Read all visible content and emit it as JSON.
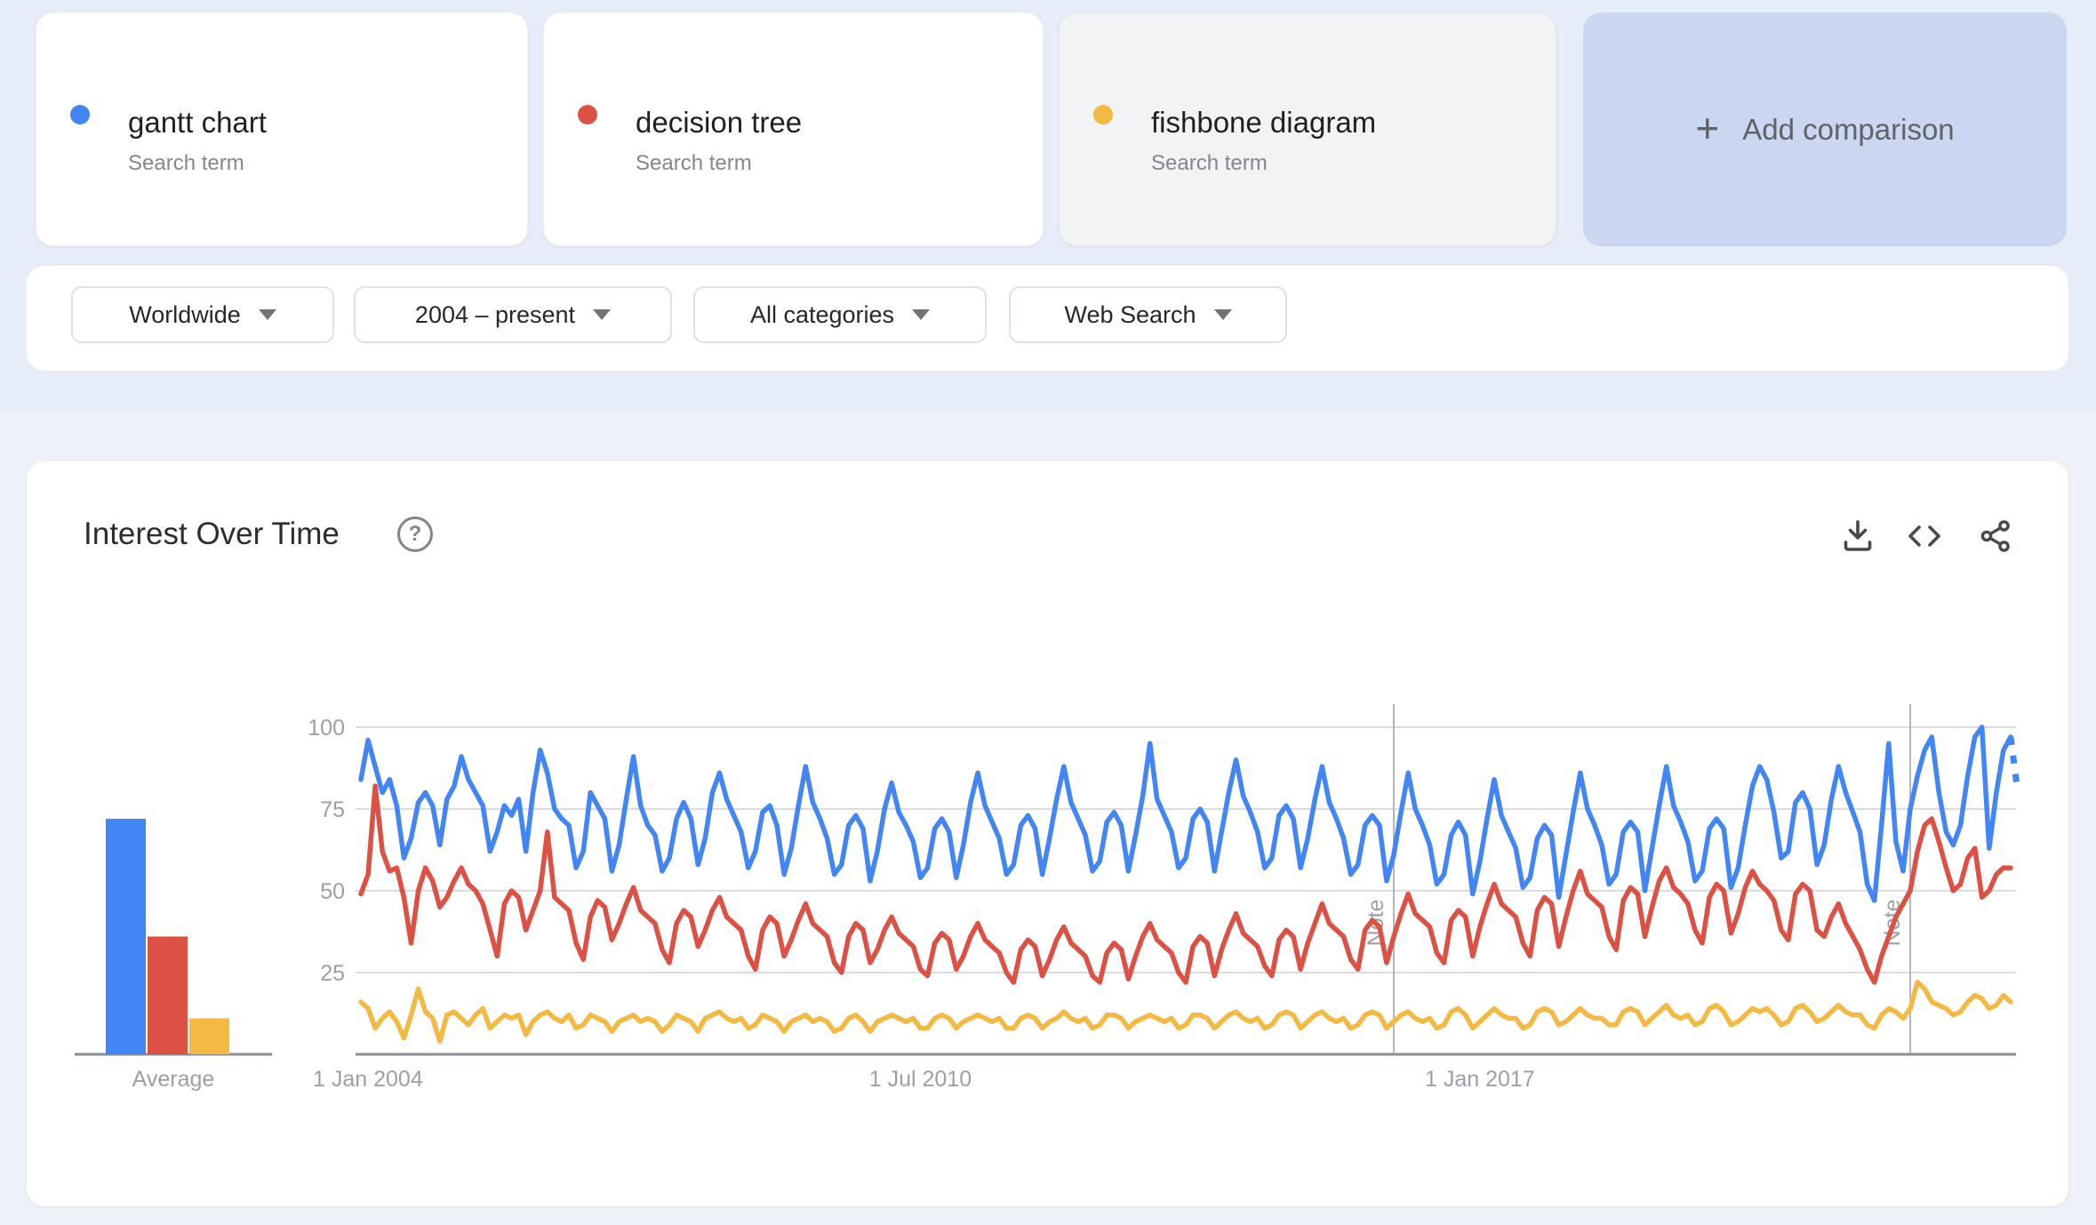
{
  "terms": [
    {
      "label": "gantt chart",
      "sublabel": "Search term",
      "color": "#4285f4"
    },
    {
      "label": "decision tree",
      "sublabel": "Search term",
      "color": "#dd5145"
    },
    {
      "label": "fishbone diagram",
      "sublabel": "Search term",
      "color": "#f4b942"
    }
  ],
  "add_comparison": {
    "plus": "+",
    "label": "Add comparison"
  },
  "filters": {
    "region": "Worldwide",
    "time": "2004 – present",
    "category": "All categories",
    "search_type": "Web Search"
  },
  "section": {
    "title": "Interest Over Time",
    "help_icon": "?"
  },
  "chart_data": {
    "type": "line",
    "title": "Interest Over Time",
    "x_unit": "month",
    "x_range": [
      "Jan 2004",
      "Mar 2023"
    ],
    "ylim": [
      0,
      100
    ],
    "grid": "horizontal",
    "legend_position": "none",
    "y_ticks": [
      100,
      75,
      50,
      25
    ],
    "x_ticks": [
      {
        "label": "1 Jan 2004",
        "index": 0
      },
      {
        "label": "1 Jul 2010",
        "index": 78
      },
      {
        "label": "1 Jan 2017",
        "index": 156
      }
    ],
    "notes": [
      {
        "label": "Note",
        "index": 144
      },
      {
        "label": "Note",
        "index": 216
      }
    ],
    "average": {
      "label": "Average",
      "values": [
        {
          "name": "gantt chart",
          "value": 72
        },
        {
          "name": "decision tree",
          "value": 36
        },
        {
          "name": "fishbone diagram",
          "value": 11
        }
      ]
    },
    "incomplete_tail": {
      "series": "gantt chart",
      "approx_value": 80,
      "style": "dotted"
    },
    "series": [
      {
        "name": "gantt chart",
        "color": "#4285f4",
        "values": [
          84,
          96,
          88,
          80,
          84,
          76,
          60,
          66,
          77,
          80,
          76,
          64,
          78,
          82,
          91,
          84,
          80,
          76,
          62,
          68,
          76,
          73,
          78,
          62,
          80,
          93,
          86,
          75,
          72,
          70,
          57,
          62,
          80,
          76,
          72,
          56,
          64,
          78,
          91,
          76,
          70,
          67,
          56,
          60,
          72,
          77,
          72,
          58,
          66,
          80,
          86,
          78,
          73,
          68,
          57,
          62,
          74,
          76,
          70,
          55,
          63,
          76,
          88,
          77,
          72,
          66,
          55,
          58,
          70,
          73,
          69,
          53,
          62,
          75,
          83,
          74,
          70,
          65,
          54,
          57,
          69,
          72,
          68,
          54,
          64,
          77,
          86,
          76,
          71,
          66,
          55,
          58,
          70,
          73,
          69,
          55,
          66,
          78,
          88,
          77,
          72,
          67,
          56,
          59,
          71,
          74,
          70,
          56,
          67,
          79,
          95,
          78,
          73,
          68,
          57,
          60,
          72,
          75,
          71,
          56,
          68,
          80,
          90,
          79,
          74,
          68,
          57,
          60,
          73,
          76,
          72,
          57,
          66,
          78,
          88,
          77,
          72,
          66,
          55,
          58,
          70,
          73,
          70,
          53,
          61,
          74,
          86,
          75,
          70,
          64,
          52,
          55,
          67,
          71,
          67,
          49,
          59,
          72,
          84,
          73,
          68,
          63,
          51,
          54,
          66,
          70,
          67,
          48,
          61,
          74,
          86,
          75,
          70,
          64,
          52,
          55,
          68,
          71,
          68,
          50,
          63,
          76,
          88,
          76,
          71,
          65,
          53,
          56,
          69,
          72,
          69,
          51,
          57,
          70,
          82,
          88,
          84,
          74,
          60,
          62,
          77,
          80,
          75,
          58,
          64,
          78,
          88,
          80,
          74,
          68,
          52,
          47,
          70,
          95,
          65,
          56,
          75,
          85,
          93,
          97,
          80,
          68,
          64,
          70,
          85,
          97,
          100,
          63,
          80,
          93,
          97
        ]
      },
      {
        "name": "decision tree",
        "color": "#dd5145",
        "values": [
          49,
          55,
          82,
          62,
          56,
          57,
          48,
          34,
          50,
          57,
          53,
          45,
          48,
          53,
          57,
          52,
          50,
          46,
          38,
          30,
          46,
          50,
          48,
          38,
          44,
          50,
          68,
          48,
          46,
          44,
          34,
          29,
          42,
          47,
          45,
          35,
          40,
          46,
          51,
          44,
          42,
          40,
          32,
          28,
          40,
          44,
          42,
          33,
          38,
          44,
          48,
          42,
          40,
          38,
          30,
          26,
          38,
          42,
          40,
          30,
          35,
          41,
          46,
          40,
          38,
          36,
          28,
          25,
          36,
          40,
          38,
          28,
          32,
          38,
          42,
          37,
          35,
          33,
          26,
          24,
          34,
          37,
          35,
          26,
          30,
          36,
          40,
          35,
          33,
          31,
          25,
          22,
          32,
          35,
          33,
          24,
          29,
          35,
          39,
          34,
          32,
          30,
          24,
          22,
          31,
          34,
          32,
          23,
          30,
          36,
          40,
          35,
          33,
          31,
          25,
          22,
          33,
          36,
          34,
          24,
          32,
          38,
          43,
          37,
          35,
          33,
          27,
          24,
          35,
          38,
          36,
          26,
          34,
          40,
          46,
          40,
          38,
          36,
          29,
          26,
          38,
          41,
          39,
          28,
          36,
          43,
          49,
          43,
          41,
          39,
          31,
          28,
          41,
          44,
          42,
          30,
          39,
          46,
          52,
          46,
          44,
          42,
          34,
          30,
          44,
          48,
          46,
          33,
          42,
          50,
          56,
          49,
          47,
          45,
          36,
          32,
          47,
          51,
          49,
          36,
          45,
          53,
          57,
          51,
          49,
          46,
          38,
          34,
          48,
          52,
          50,
          37,
          43,
          51,
          56,
          52,
          50,
          47,
          38,
          35,
          49,
          52,
          50,
          38,
          36,
          42,
          46,
          40,
          36,
          32,
          26,
          22,
          30,
          36,
          42,
          46,
          50,
          62,
          70,
          72,
          65,
          57,
          50,
          52,
          60,
          63,
          48,
          50,
          55,
          57,
          57
        ]
      },
      {
        "name": "fishbone diagram",
        "color": "#f4b942",
        "values": [
          16,
          14,
          8,
          11,
          13,
          10,
          5,
          12,
          20,
          13,
          11,
          4,
          12,
          13,
          11,
          9,
          12,
          14,
          8,
          10,
          12,
          11,
          12,
          6,
          10,
          12,
          13,
          11,
          10,
          12,
          8,
          9,
          12,
          11,
          10,
          7,
          10,
          11,
          12,
          10,
          11,
          10,
          7,
          9,
          12,
          11,
          10,
          7,
          11,
          12,
          13,
          11,
          10,
          11,
          8,
          9,
          12,
          11,
          10,
          7,
          10,
          11,
          12,
          10,
          11,
          10,
          7,
          8,
          11,
          12,
          10,
          7,
          10,
          11,
          12,
          11,
          10,
          11,
          8,
          8,
          11,
          12,
          11,
          8,
          10,
          11,
          12,
          11,
          10,
          11,
          8,
          8,
          11,
          12,
          11,
          8,
          10,
          11,
          13,
          11,
          10,
          11,
          8,
          9,
          12,
          12,
          11,
          8,
          10,
          11,
          12,
          11,
          10,
          11,
          8,
          9,
          12,
          12,
          11,
          8,
          10,
          12,
          13,
          11,
          10,
          11,
          8,
          9,
          12,
          13,
          12,
          8,
          10,
          12,
          13,
          11,
          10,
          11,
          8,
          9,
          12,
          13,
          12,
          8,
          10,
          12,
          13,
          11,
          10,
          11,
          8,
          9,
          13,
          14,
          12,
          8,
          10,
          12,
          14,
          12,
          11,
          11,
          8,
          9,
          13,
          14,
          13,
          9,
          10,
          12,
          14,
          12,
          11,
          11,
          9,
          9,
          13,
          14,
          13,
          9,
          11,
          13,
          15,
          12,
          11,
          12,
          9,
          10,
          14,
          15,
          13,
          9,
          10,
          12,
          14,
          13,
          14,
          12,
          9,
          10,
          14,
          15,
          13,
          10,
          11,
          13,
          15,
          13,
          12,
          12,
          9,
          8,
          12,
          14,
          13,
          11,
          14,
          22,
          20,
          16,
          15,
          14,
          12,
          13,
          16,
          18,
          17,
          14,
          15,
          18,
          16
        ]
      }
    ]
  }
}
